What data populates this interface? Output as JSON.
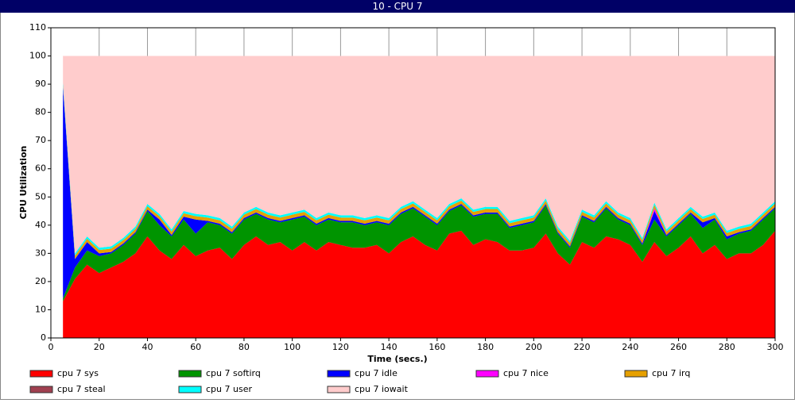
{
  "chart_data": {
    "type": "stacked-area",
    "title": "10 - CPU 7",
    "ylabel": "CPU Utilization",
    "xlabel": "Time (secs.)",
    "xlim": [
      0,
      300
    ],
    "xticks": [
      0,
      20,
      40,
      60,
      80,
      100,
      120,
      140,
      160,
      180,
      200,
      220,
      240,
      260,
      280,
      300
    ],
    "ylim": [
      0,
      110
    ],
    "yticks": [
      0,
      10,
      20,
      30,
      40,
      50,
      60,
      70,
      80,
      90,
      100,
      110
    ],
    "grid": true,
    "x": [
      5,
      10,
      15,
      20,
      25,
      30,
      35,
      40,
      45,
      50,
      55,
      60,
      65,
      70,
      75,
      80,
      85,
      90,
      95,
      100,
      105,
      110,
      115,
      120,
      125,
      130,
      135,
      140,
      145,
      150,
      155,
      160,
      165,
      170,
      175,
      180,
      185,
      190,
      195,
      200,
      205,
      210,
      215,
      220,
      225,
      230,
      235,
      240,
      245,
      250,
      255,
      260,
      265,
      270,
      275,
      280,
      285,
      290,
      295,
      300
    ],
    "series": [
      {
        "name": "cpu 7 sys",
        "color": "#ff0000",
        "values": [
          13,
          21,
          26,
          23,
          25,
          27,
          30,
          36,
          31,
          28,
          33,
          29,
          31,
          32,
          28,
          33,
          36,
          33,
          34,
          31,
          34,
          31,
          34,
          33,
          32,
          32,
          33,
          30,
          34,
          36,
          33,
          31,
          37,
          38,
          33,
          35,
          34,
          31,
          31,
          32,
          37,
          30,
          26,
          34,
          32,
          36,
          35,
          33,
          27,
          34,
          29,
          32,
          36,
          30,
          33,
          28,
          30,
          30,
          33,
          38
        ]
      },
      {
        "name": "cpu 7 softirq",
        "color": "#009400",
        "values": [
          1,
          4,
          5,
          6,
          5,
          6,
          7,
          9,
          9,
          8,
          9,
          8,
          10,
          8,
          9,
          9,
          8,
          9,
          7,
          11,
          9,
          9,
          8,
          8,
          9,
          8,
          8,
          10,
          10,
          10,
          10,
          9,
          8,
          9,
          10,
          9,
          10,
          8,
          9,
          9,
          10,
          7,
          6,
          9,
          9,
          10,
          7,
          7,
          6,
          8,
          7,
          8,
          8,
          9,
          9,
          7,
          7,
          8,
          9,
          8
        ]
      },
      {
        "name": "cpu 7 idle",
        "color": "#0000ff",
        "values": [
          75,
          3,
          3,
          1,
          0.5,
          0.5,
          0.5,
          0.5,
          2,
          0.5,
          1,
          5,
          0.5,
          0.5,
          0.5,
          0.5,
          0.5,
          0.5,
          0.5,
          0.5,
          0.5,
          0.5,
          0.5,
          0.5,
          0.5,
          0.5,
          0.5,
          0.5,
          0.5,
          0.5,
          0.5,
          0.5,
          0.5,
          0.5,
          0.5,
          0.5,
          0.5,
          0.5,
          0.5,
          0.5,
          0.5,
          0.5,
          0.5,
          0.5,
          0.5,
          0.5,
          0.5,
          0.5,
          0.5,
          3,
          0.5,
          0.5,
          0.5,
          2,
          0.5,
          1,
          0.5,
          0.5,
          0.5,
          0.5
        ]
      },
      {
        "name": "cpu 7 nice",
        "color": "#ff00ff",
        "values": [
          0,
          0,
          0,
          0,
          0,
          0,
          0,
          0,
          0,
          0,
          0,
          0,
          0,
          0,
          0,
          0,
          0,
          0,
          0,
          0,
          0,
          0,
          0,
          0,
          0,
          0,
          0,
          0,
          0,
          0,
          0,
          0,
          0,
          0,
          0,
          0,
          0,
          0,
          0,
          0,
          0,
          0,
          0,
          0,
          0,
          0,
          0,
          0,
          0,
          1,
          0,
          0,
          0,
          0,
          0,
          0,
          0,
          0,
          0,
          0
        ]
      },
      {
        "name": "cpu 7 irq",
        "color": "#e6a000",
        "values": [
          0.5,
          1.2,
          1.2,
          1.2,
          1.2,
          1.2,
          1.2,
          1.2,
          1.2,
          1.2,
          1.2,
          1.2,
          1.2,
          1.2,
          1.2,
          1.2,
          1.2,
          1.2,
          1.2,
          1.2,
          1.2,
          1.2,
          1.2,
          1.2,
          1.2,
          1.2,
          1.2,
          1.2,
          1.2,
          1.2,
          1.2,
          1.2,
          1.2,
          1.2,
          1.2,
          1.2,
          1.2,
          1.2,
          1.2,
          1.2,
          1.2,
          1.2,
          1.2,
          1.2,
          1.2,
          1.2,
          1.2,
          1.2,
          1.2,
          1.2,
          1.2,
          1.2,
          1.2,
          1.2,
          1.2,
          1.2,
          1.2,
          1.2,
          1.2,
          1.2
        ]
      },
      {
        "name": "cpu 7 steal",
        "color": "#a04050",
        "values": [
          0,
          0,
          0,
          0,
          0,
          0,
          0,
          0,
          0,
          0,
          0,
          0,
          0,
          0,
          0,
          0,
          0,
          0,
          0,
          0,
          0,
          0,
          0,
          0,
          0,
          0,
          0,
          0,
          0,
          0,
          0,
          0,
          0,
          0,
          0,
          0,
          0,
          0,
          0,
          0,
          0,
          0,
          0,
          0,
          0,
          0,
          0,
          0,
          0,
          0,
          0,
          0,
          0,
          0,
          0,
          0,
          0,
          0,
          0,
          0
        ]
      },
      {
        "name": "cpu 7 user",
        "color": "#00ffff",
        "values": [
          1,
          0.8,
          0.8,
          0.8,
          0.8,
          0.8,
          0.8,
          0.8,
          0.8,
          0.8,
          0.8,
          0.8,
          0.8,
          0.8,
          0.8,
          0.8,
          0.8,
          0.8,
          0.8,
          0.8,
          0.8,
          0.8,
          0.8,
          0.8,
          0.8,
          0.8,
          0.8,
          0.8,
          0.8,
          0.8,
          0.8,
          0.8,
          0.8,
          0.8,
          0.8,
          0.8,
          0.8,
          0.8,
          0.8,
          0.8,
          0.8,
          0.8,
          0.8,
          0.8,
          0.8,
          0.8,
          0.8,
          0.8,
          0.8,
          0.8,
          0.8,
          0.8,
          0.8,
          0.8,
          0.8,
          0.8,
          0.8,
          0.8,
          0.8,
          0.8
        ]
      },
      {
        "name": "cpu 7 iowait",
        "color": "#ffcccc",
        "values": [
          9.5,
          70,
          64,
          68,
          67.5,
          64.5,
          60.5,
          52.5,
          56,
          61.5,
          55,
          56,
          56.5,
          57.5,
          60.5,
          55.5,
          53.5,
          55.5,
          56.5,
          55.5,
          54.5,
          57.5,
          55.5,
          56.5,
          56.5,
          57.5,
          56.5,
          57.5,
          53.5,
          51.5,
          54.5,
          57.5,
          52.5,
          50.5,
          54.5,
          53.5,
          53.5,
          58.5,
          57.5,
          56.5,
          50.5,
          60.5,
          65.5,
          54.5,
          56.5,
          51.5,
          55.5,
          57.5,
          64.5,
          52,
          61.5,
          57.5,
          53.5,
          57,
          55.5,
          62,
          60.5,
          59.5,
          55.5,
          51.5
        ]
      }
    ]
  }
}
